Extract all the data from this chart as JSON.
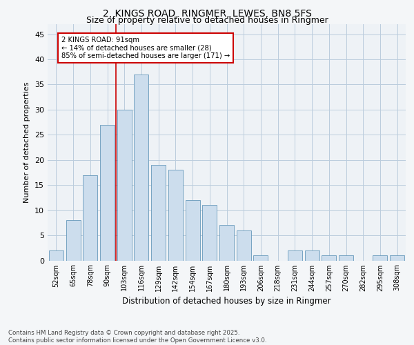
{
  "title1": "2, KINGS ROAD, RINGMER, LEWES, BN8 5FS",
  "title2": "Size of property relative to detached houses in Ringmer",
  "xlabel": "Distribution of detached houses by size in Ringmer",
  "ylabel": "Number of detached properties",
  "categories": [
    "52sqm",
    "65sqm",
    "78sqm",
    "90sqm",
    "103sqm",
    "116sqm",
    "129sqm",
    "142sqm",
    "154sqm",
    "167sqm",
    "180sqm",
    "193sqm",
    "206sqm",
    "218sqm",
    "231sqm",
    "244sqm",
    "257sqm",
    "270sqm",
    "282sqm",
    "295sqm",
    "308sqm"
  ],
  "values": [
    2,
    8,
    17,
    27,
    30,
    37,
    19,
    18,
    12,
    11,
    7,
    6,
    1,
    0,
    2,
    2,
    1,
    1,
    0,
    1,
    1
  ],
  "bar_color": "#ccdded",
  "bar_edge_color": "#6699bb",
  "grid_color": "#bbccdd",
  "background_color": "#eef2f6",
  "fig_background": "#f4f6f8",
  "annotation_text": "2 KINGS ROAD: 91sqm\n← 14% of detached houses are smaller (28)\n85% of semi-detached houses are larger (171) →",
  "annotation_box_color": "#ffffff",
  "annotation_box_edge": "#cc0000",
  "vline_color": "#cc0000",
  "ylim": [
    0,
    47
  ],
  "yticks": [
    0,
    5,
    10,
    15,
    20,
    25,
    30,
    35,
    40,
    45
  ],
  "footer_text": "Contains HM Land Registry data © Crown copyright and database right 2025.\nContains public sector information licensed under the Open Government Licence v3.0.",
  "title_fontsize": 10,
  "subtitle_fontsize": 9,
  "tick_fontsize": 7,
  "bar_width": 0.85
}
